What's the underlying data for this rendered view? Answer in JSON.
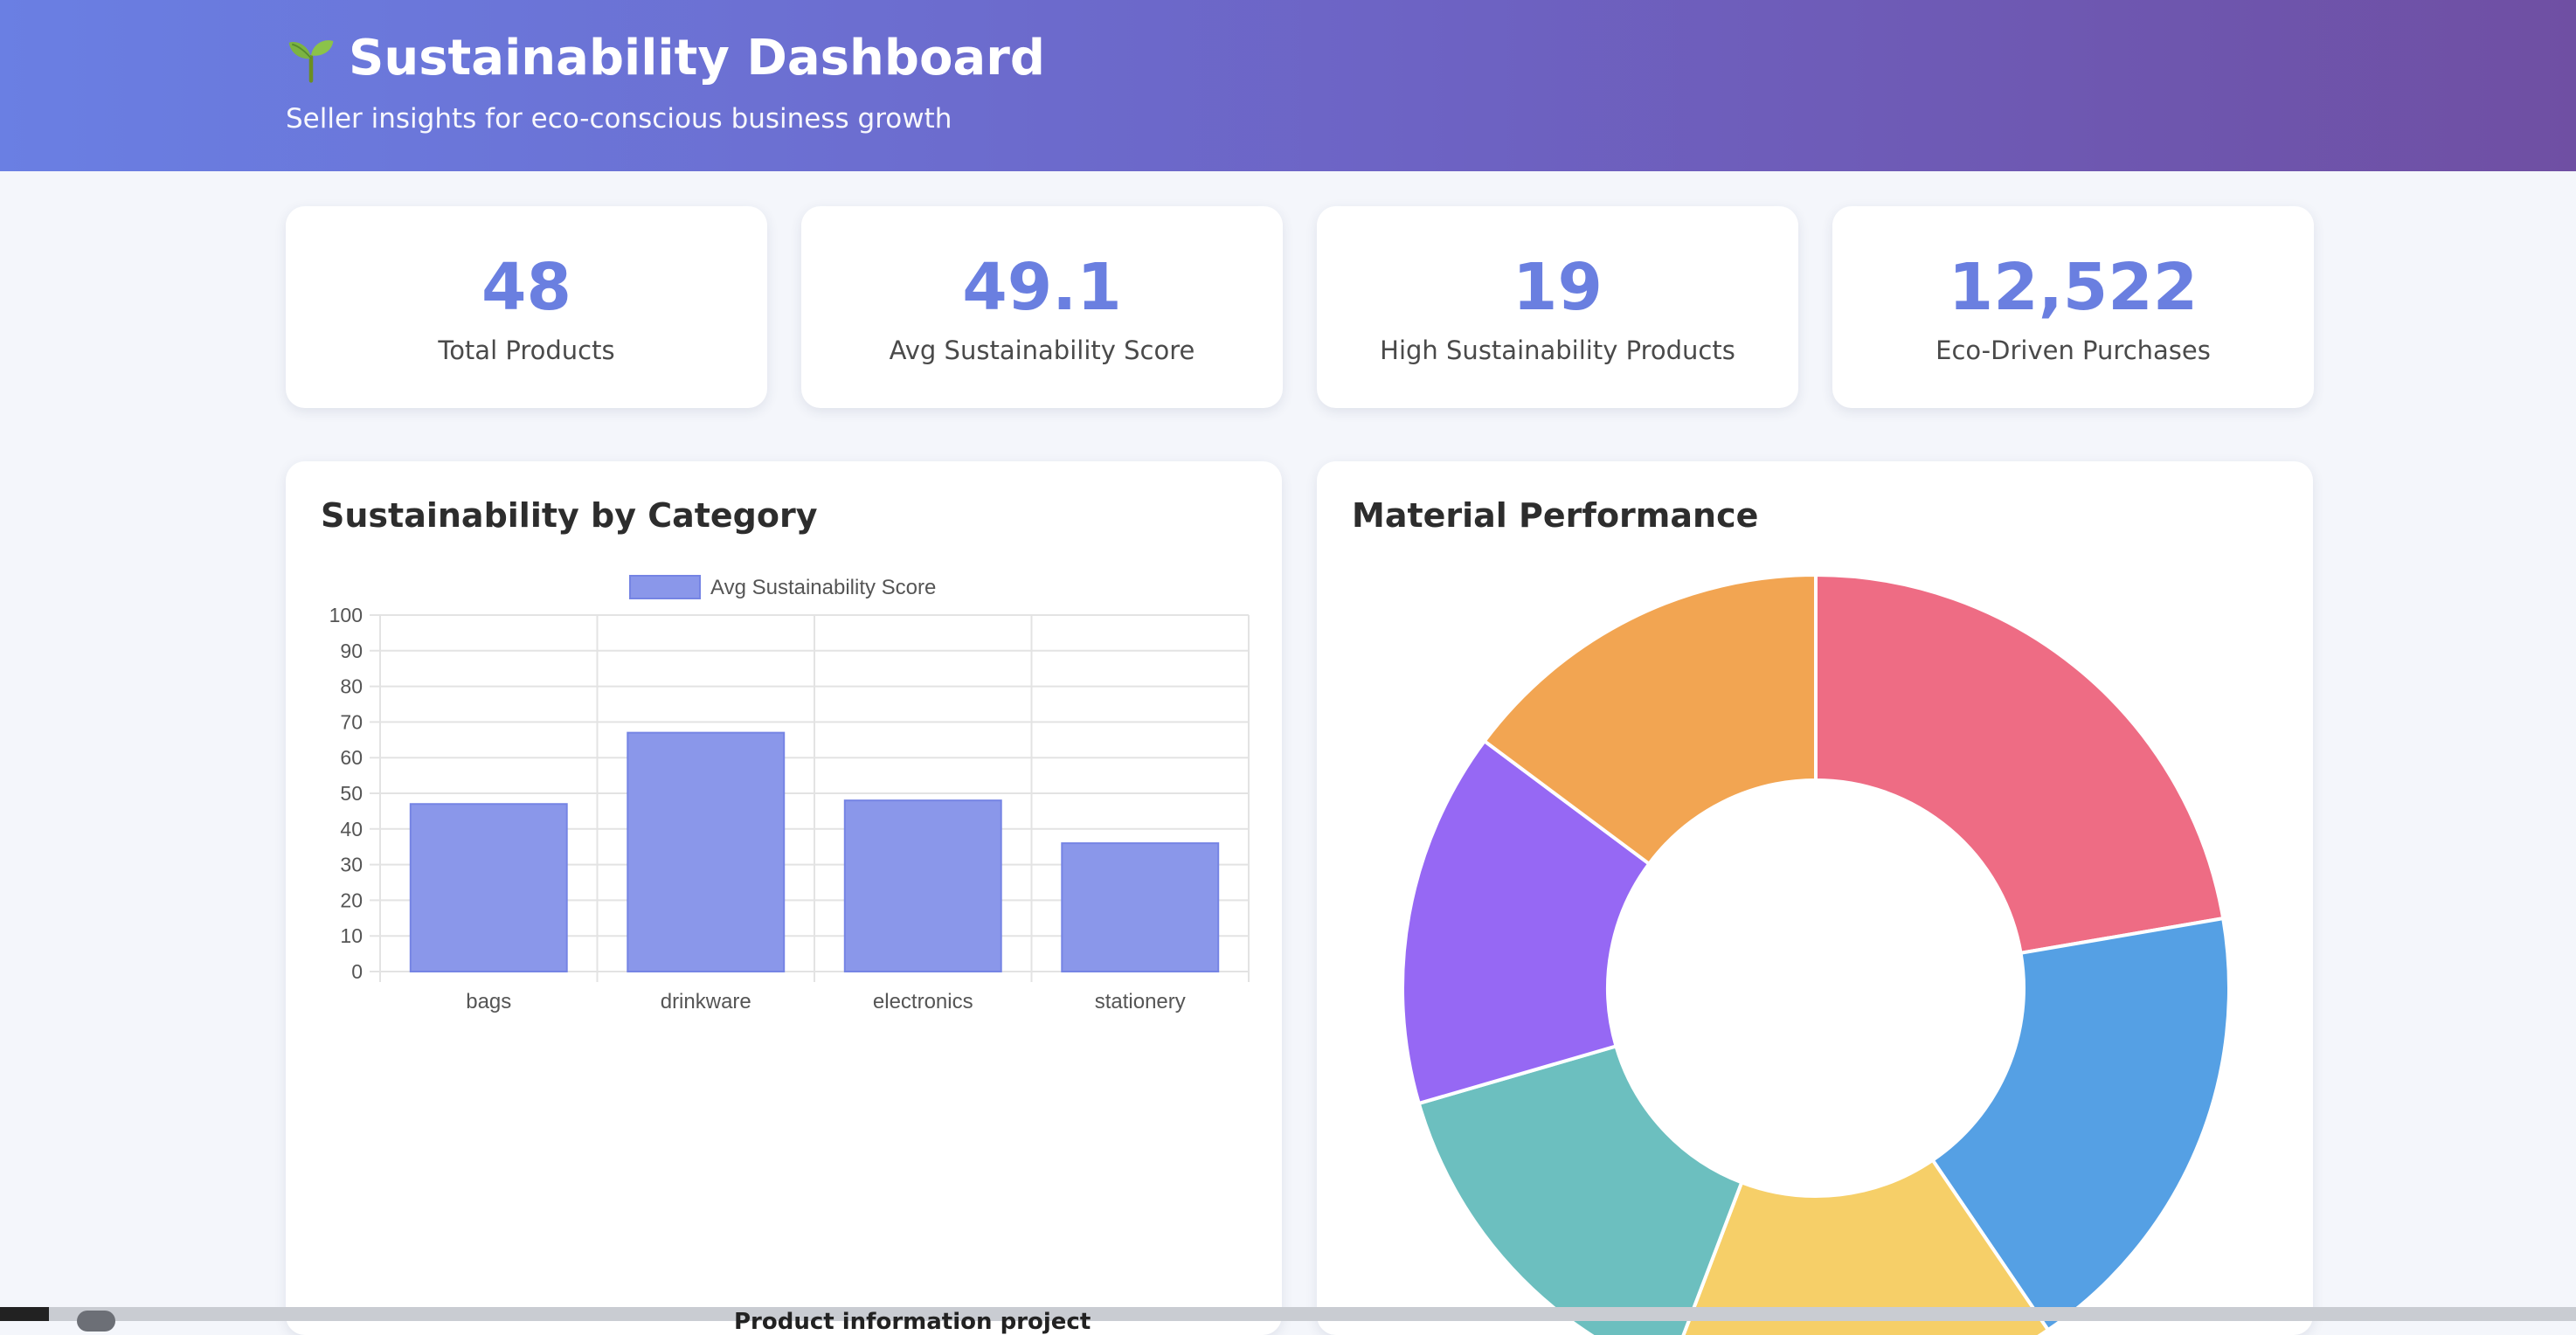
{
  "header": {
    "title": "Sustainability Dashboard",
    "subtitle": "Seller insights for eco-conscious business growth",
    "icon": "seedling-icon"
  },
  "stats": [
    {
      "value": "48",
      "label": "Total Products"
    },
    {
      "value": "49.1",
      "label": "Avg Sustainability Score"
    },
    {
      "value": "19",
      "label": "High Sustainability Products"
    },
    {
      "value": "12,522",
      "label": "Eco-Driven Purchases"
    }
  ],
  "panels": {
    "category_title": "Sustainability by Category",
    "material_title": "Material Performance"
  },
  "bottom_bar": {
    "text": "Product information project"
  },
  "colors": {
    "accent": "#6a7fe0",
    "bar_fill": "#8a97ea",
    "bar_stroke": "#7584e4"
  },
  "chart_data": [
    {
      "type": "bar",
      "title": "Sustainability by Category",
      "categories": [
        "bags",
        "drinkware",
        "electronics",
        "stationery"
      ],
      "series": [
        {
          "name": "Avg Sustainability Score",
          "values": [
            47,
            67,
            48,
            36
          ]
        }
      ],
      "ylim": [
        0,
        100
      ],
      "yticks": [
        0,
        10,
        20,
        30,
        40,
        50,
        60,
        70,
        80,
        90,
        100
      ],
      "grid": true,
      "legend": "top"
    },
    {
      "type": "pie",
      "subtype": "doughnut",
      "title": "Material Performance",
      "values": [
        22.3,
        18.2,
        15.3,
        14.7,
        14.7,
        14.8
      ],
      "colors": [
        "#ee6c84",
        "#55a0e4",
        "#f6cf68",
        "#6cbfbf",
        "#9668f4",
        "#f2a552"
      ],
      "legend": "none"
    }
  ]
}
